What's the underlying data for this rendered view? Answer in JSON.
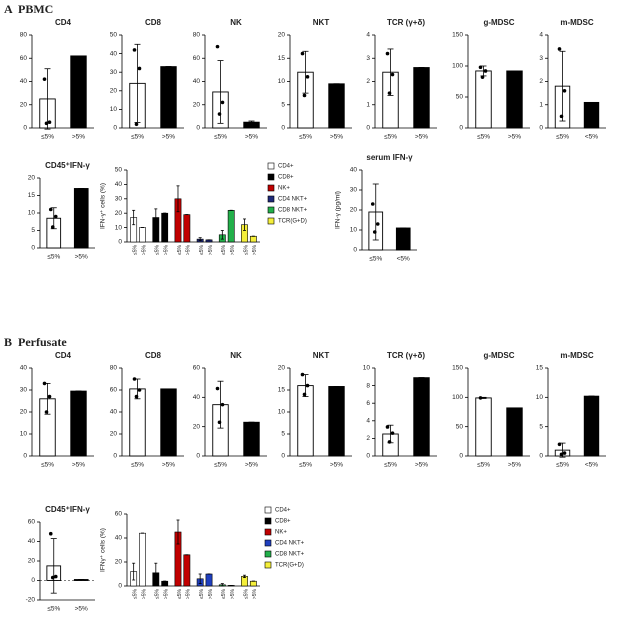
{
  "panels": [
    {
      "letter": "A",
      "name": "PBMC"
    },
    {
      "letter": "B",
      "name": "Perfusate"
    }
  ],
  "chart_data": [
    {
      "type": "bar",
      "title": "CD4",
      "categories": [
        "≤5%",
        ">5%"
      ],
      "values": [
        25,
        62
      ],
      "errors": [
        26,
        0
      ],
      "points": [
        [
          42,
          5,
          4
        ]
      ],
      "colors": [
        "#ffffff",
        "#000000"
      ],
      "ylim": [
        0,
        80
      ],
      "yticks": [
        0,
        20,
        40,
        60,
        80
      ]
    },
    {
      "type": "bar",
      "title": "CD8",
      "categories": [
        "≤5%",
        ">5%"
      ],
      "values": [
        24,
        33
      ],
      "errors": [
        21,
        0
      ],
      "points": [
        [
          42,
          32,
          2
        ]
      ],
      "colors": [
        "#ffffff",
        "#000000"
      ],
      "ylim": [
        0,
        50
      ],
      "yticks": [
        0,
        10,
        20,
        30,
        40,
        50
      ]
    },
    {
      "type": "bar",
      "title": "NK",
      "categories": [
        "≤5%",
        ">5%"
      ],
      "values": [
        31,
        5
      ],
      "errors": [
        27,
        1
      ],
      "points": [
        [
          70,
          22,
          12
        ]
      ],
      "colors": [
        "#ffffff",
        "#000000"
      ],
      "ylim": [
        0,
        80
      ],
      "yticks": [
        0,
        20,
        40,
        60,
        80
      ]
    },
    {
      "type": "bar",
      "title": "NKT",
      "categories": [
        "≤5%",
        ">5%"
      ],
      "values": [
        12,
        9.5
      ],
      "errors": [
        4.5,
        0
      ],
      "points": [
        [
          16,
          11,
          7
        ]
      ],
      "colors": [
        "#ffffff",
        "#000000"
      ],
      "ylim": [
        0,
        20
      ],
      "yticks": [
        0,
        5,
        10,
        15,
        20
      ]
    },
    {
      "type": "bar",
      "title": "TCR (γ+δ)",
      "categories": [
        "≤5%",
        ">5%"
      ],
      "values": [
        2.4,
        2.6
      ],
      "errors": [
        1,
        0
      ],
      "points": [
        [
          3.2,
          2.3,
          1.5
        ]
      ],
      "colors": [
        "#ffffff",
        "#000000"
      ],
      "ylim": [
        0,
        4
      ],
      "yticks": [
        0,
        1,
        2,
        3,
        4
      ]
    },
    {
      "type": "bar",
      "title": "g-MDSC",
      "categories": [
        "≤5%",
        ">5%"
      ],
      "values": [
        92,
        92
      ],
      "errors": [
        8,
        0
      ],
      "points": [
        [
          98,
          92,
          82
        ]
      ],
      "colors": [
        "#ffffff",
        "#000000"
      ],
      "ylim": [
        0,
        150
      ],
      "yticks": [
        0,
        50,
        100,
        150
      ]
    },
    {
      "type": "bar",
      "title": "m-MDSC",
      "categories": [
        "≤5%",
        "<5%"
      ],
      "values": [
        1.8,
        1.1
      ],
      "errors": [
        1.5,
        0
      ],
      "points": [
        [
          3.4,
          1.6,
          0.5
        ]
      ],
      "colors": [
        "#ffffff",
        "#000000"
      ],
      "ylim": [
        0,
        4
      ],
      "yticks": [
        0,
        1,
        2,
        3,
        4
      ]
    },
    {
      "type": "bar",
      "title": "CD45⁺IFN-γ",
      "categories": [
        "≤5%",
        ">5%"
      ],
      "values": [
        8.5,
        17
      ],
      "errors": [
        3,
        0
      ],
      "points": [
        [
          11,
          9,
          6
        ]
      ],
      "colors": [
        "#ffffff",
        "#000000"
      ],
      "ylim": [
        0,
        20
      ],
      "yticks": [
        0,
        5,
        10,
        15,
        20
      ]
    },
    {
      "type": "grouped_bar",
      "ylabel": "IFN-γ⁺ cells (%)",
      "categories": [
        "≤5%",
        ">5%"
      ],
      "ylim": [
        0,
        50
      ],
      "yticks": [
        0,
        10,
        20,
        30,
        40,
        50
      ],
      "series": [
        {
          "name": "CD4+",
          "color": "#ffffff",
          "values": [
            17,
            10
          ],
          "errors": [
            5,
            0
          ]
        },
        {
          "name": "CD8+",
          "color": "#000000",
          "values": [
            17,
            20
          ],
          "errors": [
            6,
            0
          ]
        },
        {
          "name": "NK+",
          "color": "#c00000",
          "values": [
            30,
            19
          ],
          "errors": [
            9,
            0
          ]
        },
        {
          "name": "CD4 NKT+",
          "color": "#1f2a7a",
          "values": [
            2,
            1.5
          ],
          "errors": [
            1,
            0
          ]
        },
        {
          "name": "CD8 NKT+",
          "color": "#22b04a",
          "values": [
            5,
            22
          ],
          "errors": [
            3,
            0
          ]
        },
        {
          "name": "TCR(G+D)",
          "color": "#f5ef3a",
          "values": [
            12,
            4
          ],
          "errors": [
            4,
            0
          ]
        }
      ]
    },
    {
      "type": "bar",
      "title": "serum IFN-γ",
      "ylabel": "IFN-γ (pg/ml)",
      "categories": [
        "≤5%",
        "<5%"
      ],
      "values": [
        19,
        11
      ],
      "errors": [
        14,
        0
      ],
      "points": [
        [
          23,
          13,
          9
        ]
      ],
      "colors": [
        "#ffffff",
        "#000000"
      ],
      "ylim": [
        0,
        40
      ],
      "yticks": [
        0,
        10,
        20,
        30,
        40
      ]
    },
    {
      "type": "bar",
      "title": "CD4",
      "categories": [
        "≤5%",
        ">5%"
      ],
      "values": [
        26,
        29.5
      ],
      "errors": [
        7,
        0
      ],
      "points": [
        [
          33,
          27,
          20
        ]
      ],
      "colors": [
        "#ffffff",
        "#000000"
      ],
      "ylim": [
        0,
        40
      ],
      "yticks": [
        0,
        10,
        20,
        30,
        40
      ]
    },
    {
      "type": "bar",
      "title": "CD8",
      "categories": [
        "≤5%",
        ">5%"
      ],
      "values": [
        61,
        61
      ],
      "errors": [
        9,
        0
      ],
      "points": [
        [
          70,
          60,
          54
        ]
      ],
      "colors": [
        "#ffffff",
        "#000000"
      ],
      "ylim": [
        0,
        80
      ],
      "yticks": [
        0,
        20,
        40,
        60,
        80
      ]
    },
    {
      "type": "bar",
      "title": "NK",
      "categories": [
        "≤5%",
        ">5%"
      ],
      "values": [
        35,
        23
      ],
      "errors": [
        16,
        0
      ],
      "points": [
        [
          46,
          35,
          23
        ]
      ],
      "colors": [
        "#ffffff",
        "#000000"
      ],
      "ylim": [
        0,
        60
      ],
      "yticks": [
        0,
        20,
        40,
        60
      ]
    },
    {
      "type": "bar",
      "title": "NKT",
      "categories": [
        "≤5%",
        ">5%"
      ],
      "values": [
        16,
        15.8
      ],
      "errors": [
        2.5,
        0
      ],
      "points": [
        [
          18.5,
          16,
          14
        ]
      ],
      "colors": [
        "#ffffff",
        "#000000"
      ],
      "ylim": [
        0,
        20
      ],
      "yticks": [
        0,
        5,
        10,
        15,
        20
      ]
    },
    {
      "type": "bar",
      "title": "TCR (γ+δ)",
      "categories": [
        "≤5%",
        ">5%"
      ],
      "values": [
        2.5,
        8.9
      ],
      "errors": [
        1,
        0
      ],
      "points": [
        [
          3.3,
          2.6,
          1.6
        ]
      ],
      "colors": [
        "#ffffff",
        "#000000"
      ],
      "ylim": [
        0,
        10
      ],
      "yticks": [
        0,
        2,
        4,
        6,
        8,
        10
      ]
    },
    {
      "type": "bar",
      "title": "g-MDSC",
      "categories": [
        "≤5%",
        ">5%"
      ],
      "values": [
        99,
        82
      ],
      "errors": [
        1,
        0
      ],
      "points": [
        [
          99
        ]
      ],
      "colors": [
        "#ffffff",
        "#000000"
      ],
      "ylim": [
        0,
        150
      ],
      "yticks": [
        0,
        50,
        100,
        150
      ]
    },
    {
      "type": "bar",
      "title": "m-MDSC",
      "categories": [
        "≤5%",
        "<5%"
      ],
      "values": [
        1,
        10.2
      ],
      "errors": [
        1.2,
        0
      ],
      "points": [
        [
          2,
          0.5,
          0.3
        ]
      ],
      "colors": [
        "#ffffff",
        "#000000"
      ],
      "ylim": [
        0,
        15
      ],
      "yticks": [
        0,
        5,
        10,
        15
      ]
    },
    {
      "type": "bar",
      "title": "CD45⁺IFN-γ",
      "categories": [
        "≤5%",
        ">5%"
      ],
      "values": [
        15,
        1
      ],
      "errors": [
        28,
        0
      ],
      "points": [
        [
          48,
          4,
          3
        ]
      ],
      "colors": [
        "#ffffff",
        "#000000"
      ],
      "ylim": [
        -20,
        60
      ],
      "yticks": [
        -20,
        0,
        20,
        40,
        60
      ],
      "zero_line": true
    },
    {
      "type": "grouped_bar",
      "ylabel": "IFNγ⁺ cells (%)",
      "categories": [
        "≤5%",
        ">5%"
      ],
      "ylim": [
        0,
        60
      ],
      "yticks": [
        0,
        20,
        40,
        60
      ],
      "series": [
        {
          "name": "CD4+",
          "color": "#ffffff",
          "values": [
            12,
            44
          ],
          "errors": [
            7,
            0
          ]
        },
        {
          "name": "CD8+",
          "color": "#000000",
          "values": [
            11,
            4
          ],
          "errors": [
            8,
            0
          ]
        },
        {
          "name": "NK+",
          "color": "#c00000",
          "values": [
            45,
            26
          ],
          "errors": [
            10,
            0
          ]
        },
        {
          "name": "CD4 NKT+",
          "color": "#1f3fbf",
          "values": [
            6,
            10
          ],
          "errors": [
            4,
            0
          ]
        },
        {
          "name": "CD8 NKT+",
          "color": "#22b04a",
          "values": [
            1,
            0.5
          ],
          "errors": [
            1,
            0
          ]
        },
        {
          "name": "TCR(G+D)",
          "color": "#f5ef3a",
          "values": [
            8,
            4
          ],
          "errors": [
            1,
            0
          ]
        }
      ]
    }
  ]
}
